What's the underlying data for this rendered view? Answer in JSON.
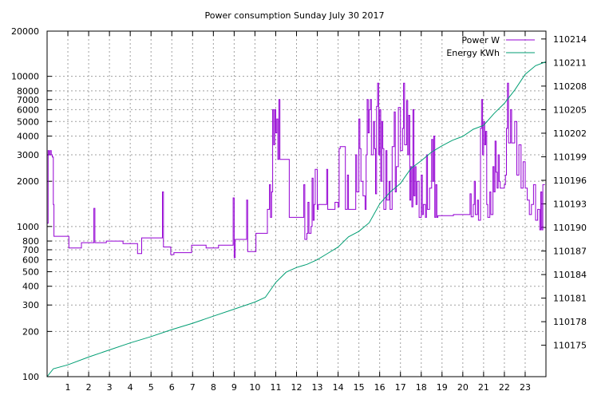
{
  "chart_data": {
    "type": "line",
    "title": "Power consumption Sunday July 30 2017",
    "legend_position": "top-right",
    "grid": true,
    "x_axis": {
      "range": [
        0,
        24
      ],
      "ticks": [
        1,
        2,
        3,
        4,
        5,
        6,
        7,
        8,
        9,
        10,
        11,
        12,
        13,
        14,
        15,
        16,
        17,
        18,
        19,
        20,
        21,
        22,
        23
      ],
      "tick_labels": [
        "1",
        "2",
        "3",
        "4",
        "5",
        "6",
        "7",
        "8",
        "9",
        "10",
        "11",
        "12",
        "13",
        "14",
        "15",
        "16",
        "17",
        "18",
        "19",
        "20",
        "21",
        "22",
        "23"
      ]
    },
    "y_axis": {
      "scale": "log",
      "range": [
        100,
        20000
      ],
      "ticks": [
        100,
        200,
        300,
        400,
        500,
        600,
        700,
        800,
        1000,
        2000,
        3000,
        4000,
        5000,
        6000,
        7000,
        8000,
        10000,
        20000
      ],
      "tick_labels": [
        "100",
        "200",
        "300",
        "400",
        "500",
        "600",
        "700",
        "800",
        "1000",
        "2000",
        "3000",
        "4000",
        "5000",
        "6000",
        "7000",
        "8000",
        "10000",
        "20000"
      ]
    },
    "y2_axis": {
      "scale": "linear",
      "range": [
        110171,
        110215
      ],
      "ticks": [
        110175,
        110178,
        110181,
        110184,
        110187,
        110190,
        110193,
        110196,
        110199,
        110202,
        110205,
        110208,
        110211,
        110214
      ],
      "tick_labels": [
        "110175",
        "110178",
        "110181",
        "110184",
        "110187",
        "110190",
        "110193",
        "110196",
        "110199",
        "110202",
        "110205",
        "110208",
        "110211",
        "110214"
      ]
    },
    "series": [
      {
        "name": "Power W",
        "color": "#9400d3",
        "axis": "y",
        "points": [
          [
            0.0,
            1050
          ],
          [
            0.05,
            3200
          ],
          [
            0.1,
            3000
          ],
          [
            0.15,
            3200
          ],
          [
            0.2,
            3000
          ],
          [
            0.25,
            2900
          ],
          [
            0.3,
            1400
          ],
          [
            0.33,
            860
          ],
          [
            1.0,
            860
          ],
          [
            1.05,
            720
          ],
          [
            1.6,
            720
          ],
          [
            1.65,
            780
          ],
          [
            2.2,
            780
          ],
          [
            2.25,
            1320
          ],
          [
            2.3,
            780
          ],
          [
            2.8,
            780
          ],
          [
            2.85,
            800
          ],
          [
            3.6,
            800
          ],
          [
            3.65,
            770
          ],
          [
            4.3,
            770
          ],
          [
            4.35,
            660
          ],
          [
            4.5,
            660
          ],
          [
            4.55,
            840
          ],
          [
            5.5,
            840
          ],
          [
            5.55,
            1700
          ],
          [
            5.6,
            730
          ],
          [
            5.9,
            730
          ],
          [
            5.95,
            650
          ],
          [
            6.05,
            650
          ],
          [
            6.1,
            670
          ],
          [
            6.9,
            670
          ],
          [
            6.95,
            750
          ],
          [
            7.6,
            750
          ],
          [
            7.65,
            720
          ],
          [
            8.2,
            720
          ],
          [
            8.25,
            750
          ],
          [
            8.9,
            750
          ],
          [
            8.95,
            1550
          ],
          [
            9.0,
            620
          ],
          [
            9.05,
            820
          ],
          [
            9.55,
            820
          ],
          [
            9.6,
            1500
          ],
          [
            9.65,
            680
          ],
          [
            10.0,
            680
          ],
          [
            10.05,
            900
          ],
          [
            10.5,
            900
          ],
          [
            10.6,
            1300
          ],
          [
            10.7,
            1900
          ],
          [
            10.75,
            1150
          ],
          [
            10.8,
            1700
          ],
          [
            10.85,
            6000
          ],
          [
            10.9,
            3500
          ],
          [
            10.95,
            6000
          ],
          [
            11.0,
            4200
          ],
          [
            11.05,
            5200
          ],
          [
            11.1,
            2800
          ],
          [
            11.15,
            7000
          ],
          [
            11.2,
            2800
          ],
          [
            11.6,
            2800
          ],
          [
            11.65,
            1150
          ],
          [
            12.3,
            1150
          ],
          [
            12.35,
            1900
          ],
          [
            12.4,
            820
          ],
          [
            12.5,
            900
          ],
          [
            12.55,
            1450
          ],
          [
            12.6,
            900
          ],
          [
            12.7,
            1000
          ],
          [
            12.75,
            2100
          ],
          [
            12.8,
            1100
          ],
          [
            12.85,
            1400
          ],
          [
            12.9,
            2400
          ],
          [
            13.0,
            1300
          ],
          [
            13.05,
            1400
          ],
          [
            13.4,
            1400
          ],
          [
            13.45,
            2400
          ],
          [
            13.5,
            1300
          ],
          [
            13.8,
            1300
          ],
          [
            13.85,
            1450
          ],
          [
            14.0,
            1350
          ],
          [
            14.05,
            3300
          ],
          [
            14.1,
            3400
          ],
          [
            14.3,
            3400
          ],
          [
            14.35,
            1300
          ],
          [
            14.4,
            1300
          ],
          [
            14.45,
            2200
          ],
          [
            14.5,
            1300
          ],
          [
            14.8,
            1300
          ],
          [
            14.85,
            3000
          ],
          [
            14.9,
            1700
          ],
          [
            15.0,
            5200
          ],
          [
            15.05,
            3300
          ],
          [
            15.1,
            2000
          ],
          [
            15.2,
            1600
          ],
          [
            15.3,
            1300
          ],
          [
            15.35,
            3000
          ],
          [
            15.4,
            7000
          ],
          [
            15.45,
            4200
          ],
          [
            15.5,
            6000
          ],
          [
            15.55,
            7000
          ],
          [
            15.6,
            3000
          ],
          [
            15.7,
            5000
          ],
          [
            15.75,
            3300
          ],
          [
            15.8,
            1650
          ],
          [
            15.85,
            6300
          ],
          [
            15.9,
            9000
          ],
          [
            15.95,
            3000
          ],
          [
            16.0,
            6000
          ],
          [
            16.05,
            2000
          ],
          [
            16.1,
            5000
          ],
          [
            16.15,
            3300
          ],
          [
            16.2,
            1300
          ],
          [
            16.3,
            3200
          ],
          [
            16.35,
            1500
          ],
          [
            16.45,
            2000
          ],
          [
            16.5,
            1300
          ],
          [
            16.6,
            3400
          ],
          [
            16.7,
            5800
          ],
          [
            16.75,
            1700
          ],
          [
            16.8,
            2500
          ],
          [
            16.9,
            6200
          ],
          [
            17.0,
            3200
          ],
          [
            17.1,
            4500
          ],
          [
            17.15,
            9000
          ],
          [
            17.2,
            3500
          ],
          [
            17.3,
            6900
          ],
          [
            17.35,
            3000
          ],
          [
            17.4,
            5500
          ],
          [
            17.45,
            1500
          ],
          [
            17.5,
            2500
          ],
          [
            17.55,
            1350
          ],
          [
            17.6,
            6000
          ],
          [
            17.65,
            1600
          ],
          [
            17.7,
            2500
          ],
          [
            17.75,
            1400
          ],
          [
            17.8,
            2000
          ],
          [
            17.9,
            1150
          ],
          [
            18.0,
            2200
          ],
          [
            18.05,
            1200
          ],
          [
            18.1,
            1400
          ],
          [
            18.2,
            1150
          ],
          [
            18.25,
            3000
          ],
          [
            18.3,
            1300
          ],
          [
            18.4,
            1800
          ],
          [
            18.5,
            3800
          ],
          [
            18.55,
            2000
          ],
          [
            18.6,
            4000
          ],
          [
            18.65,
            1150
          ],
          [
            18.7,
            1900
          ],
          [
            18.75,
            1150
          ],
          [
            18.8,
            1180
          ],
          [
            19.5,
            1180
          ],
          [
            19.55,
            1200
          ],
          [
            20.3,
            1200
          ],
          [
            20.35,
            1650
          ],
          [
            20.4,
            1160
          ],
          [
            20.5,
            1400
          ],
          [
            20.55,
            2000
          ],
          [
            20.6,
            1200
          ],
          [
            20.7,
            1500
          ],
          [
            20.75,
            1100
          ],
          [
            20.85,
            4500
          ],
          [
            20.9,
            7000
          ],
          [
            20.95,
            3000
          ],
          [
            21.0,
            5000
          ],
          [
            21.05,
            3500
          ],
          [
            21.1,
            4300
          ],
          [
            21.15,
            1400
          ],
          [
            21.2,
            1150
          ],
          [
            21.3,
            1700
          ],
          [
            21.35,
            1200
          ],
          [
            21.45,
            2500
          ],
          [
            21.5,
            1700
          ],
          [
            21.55,
            3700
          ],
          [
            21.6,
            2300
          ],
          [
            21.65,
            1800
          ],
          [
            21.7,
            3000
          ],
          [
            21.75,
            2000
          ],
          [
            21.8,
            1800
          ],
          [
            22.0,
            1900
          ],
          [
            22.05,
            2200
          ],
          [
            22.1,
            4500
          ],
          [
            22.15,
            9000
          ],
          [
            22.2,
            3600
          ],
          [
            22.3,
            6000
          ],
          [
            22.35,
            3600
          ],
          [
            22.5,
            5000
          ],
          [
            22.6,
            2200
          ],
          [
            22.7,
            3500
          ],
          [
            22.8,
            1800
          ],
          [
            22.9,
            2700
          ],
          [
            23.0,
            1800
          ],
          [
            23.1,
            1500
          ],
          [
            23.2,
            1200
          ],
          [
            23.3,
            1400
          ],
          [
            23.4,
            1900
          ],
          [
            23.5,
            1100
          ],
          [
            23.6,
            1300
          ],
          [
            23.7,
            950
          ],
          [
            23.75,
            1700
          ],
          [
            23.8,
            950
          ],
          [
            23.85,
            1900
          ],
          [
            23.95,
            1900
          ]
        ]
      },
      {
        "name": "Energy KWh",
        "color": "#009e73",
        "axis": "y2",
        "points": [
          [
            0.0,
            110171.0
          ],
          [
            0.3,
            110172.0
          ],
          [
            1.0,
            110172.5
          ],
          [
            2.0,
            110173.5
          ],
          [
            3.0,
            110174.4
          ],
          [
            4.0,
            110175.3
          ],
          [
            5.0,
            110176.1
          ],
          [
            6.0,
            110177.0
          ],
          [
            7.0,
            110177.8
          ],
          [
            8.0,
            110178.7
          ],
          [
            9.0,
            110179.6
          ],
          [
            10.0,
            110180.5
          ],
          [
            10.5,
            110181.1
          ],
          [
            11.0,
            110183.0
          ],
          [
            11.5,
            110184.3
          ],
          [
            12.0,
            110184.9
          ],
          [
            12.5,
            110185.3
          ],
          [
            13.0,
            110185.9
          ],
          [
            13.5,
            110186.7
          ],
          [
            14.0,
            110187.5
          ],
          [
            14.5,
            110188.8
          ],
          [
            15.0,
            110189.5
          ],
          [
            15.5,
            110190.6
          ],
          [
            16.0,
            110193.0
          ],
          [
            16.5,
            110194.5
          ],
          [
            17.0,
            110195.6
          ],
          [
            17.5,
            110197.5
          ],
          [
            18.0,
            110198.5
          ],
          [
            18.5,
            110199.6
          ],
          [
            19.0,
            110200.4
          ],
          [
            19.5,
            110201.1
          ],
          [
            20.0,
            110201.6
          ],
          [
            20.5,
            110202.5
          ],
          [
            21.0,
            110203.0
          ],
          [
            21.5,
            110204.5
          ],
          [
            22.0,
            110205.8
          ],
          [
            22.5,
            110207.5
          ],
          [
            23.0,
            110209.5
          ],
          [
            23.5,
            110210.6
          ],
          [
            24.0,
            110211.1
          ]
        ]
      }
    ]
  }
}
